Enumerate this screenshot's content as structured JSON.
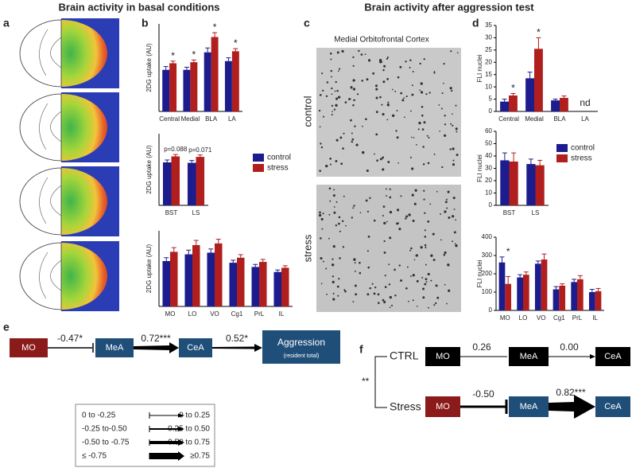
{
  "titles": [
    "Brain activity in basal conditions",
    "Brain activity after aggression test"
  ],
  "panel_labels": [
    "a",
    "b",
    "c",
    "d",
    "e",
    "f"
  ],
  "panel_c": {
    "title": "Medial Orbitofrontal Cortex",
    "rows": [
      "control",
      "stress"
    ]
  },
  "chart_data": [
    {
      "type": "bar",
      "y_label": "2DG uptake (AU)",
      "categories": [
        "Central",
        "Medial",
        "BLA",
        "LA"
      ],
      "ylim": [
        0,
        400
      ],
      "series": [
        {
          "name": "control",
          "color": "#1c1c8e",
          "values": [
            190,
            190,
            270,
            230
          ],
          "errors": [
            15,
            12,
            20,
            15
          ]
        },
        {
          "name": "stress",
          "color": "#b01e1e",
          "values": [
            220,
            225,
            340,
            275
          ],
          "errors": [
            10,
            10,
            20,
            12
          ]
        }
      ],
      "significance": [
        "*",
        "*",
        "*",
        "*"
      ]
    },
    {
      "type": "bar",
      "y_label": "2DG uptake (AU)",
      "categories": [
        "BST",
        "LS"
      ],
      "ylim": [
        0,
        300
      ],
      "legend": true,
      "series": [
        {
          "name": "control",
          "color": "#1c1c8e",
          "values": [
            180,
            178
          ],
          "errors": [
            10,
            10
          ]
        },
        {
          "name": "stress",
          "color": "#b01e1e",
          "values": [
            205,
            203
          ],
          "errors": [
            8,
            8
          ]
        }
      ],
      "significance": [
        "p=0.088",
        "p=0.071"
      ]
    },
    {
      "type": "bar",
      "y_label": "2DG uptake (AU)",
      "categories": [
        "MO",
        "LO",
        "VO",
        "Cg1",
        "PrL",
        "IL"
      ],
      "ylim": [
        0,
        450
      ],
      "series": [
        {
          "name": "control",
          "color": "#1c1c8e",
          "values": [
            270,
            310,
            320,
            260,
            235,
            205
          ],
          "errors": [
            20,
            25,
            22,
            15,
            15,
            12
          ]
        },
        {
          "name": "stress",
          "color": "#b01e1e",
          "values": [
            325,
            365,
            375,
            290,
            265,
            230
          ],
          "errors": [
            25,
            28,
            25,
            18,
            15,
            12
          ]
        }
      ]
    },
    {
      "type": "bar",
      "y_label": "FLI nuclei",
      "categories": [
        "Central",
        "Medial",
        "BLA",
        "LA"
      ],
      "ylim": [
        0,
        35
      ],
      "yticks": [
        0,
        5,
        10,
        15,
        20,
        25,
        30,
        35
      ],
      "series": [
        {
          "name": "control",
          "color": "#1c1c8e",
          "values": [
            4,
            13.5,
            4.5,
            null
          ],
          "errors": [
            1,
            2.5,
            0.5,
            null
          ]
        },
        {
          "name": "stress",
          "color": "#b01e1e",
          "values": [
            6.5,
            25.5,
            5.5,
            null
          ],
          "errors": [
            0.8,
            4.5,
            0.8,
            null
          ]
        }
      ],
      "significance": [
        "*",
        "*",
        null,
        "nd"
      ]
    },
    {
      "type": "bar",
      "y_label": "FLI nuclei",
      "categories": [
        "BST",
        "LS"
      ],
      "ylim": [
        0,
        60
      ],
      "yticks": [
        0,
        10,
        20,
        30,
        40,
        50,
        60
      ],
      "legend": true,
      "series": [
        {
          "name": "control",
          "color": "#1c1c8e",
          "values": [
            36.5,
            33.5
          ],
          "errors": [
            6,
            4
          ]
        },
        {
          "name": "stress",
          "color": "#b01e1e",
          "values": [
            35.5,
            32.5
          ],
          "errors": [
            7,
            4
          ]
        }
      ]
    },
    {
      "type": "bar",
      "y_label": "FLI nuclei",
      "categories": [
        "MO",
        "LO",
        "VO",
        "Cg1",
        "PrL",
        "IL"
      ],
      "ylim": [
        0,
        400
      ],
      "yticks": [
        0,
        100,
        200,
        300,
        400
      ],
      "series": [
        {
          "name": "control",
          "color": "#1c1c8e",
          "values": [
            262,
            180,
            255,
            115,
            155,
            100
          ],
          "errors": [
            30,
            15,
            15,
            15,
            15,
            15
          ]
        },
        {
          "name": "stress",
          "color": "#b01e1e",
          "values": [
            145,
            195,
            278,
            135,
            170,
            105
          ],
          "errors": [
            40,
            15,
            30,
            10,
            20,
            15
          ]
        }
      ],
      "significance": [
        "*",
        null,
        null,
        null,
        null,
        null
      ]
    }
  ],
  "panel_e": {
    "nodes": [
      "MO",
      "MeA",
      "CeA",
      "Aggression",
      "(resident total)"
    ],
    "edges": [
      "-0.47*",
      "0.72***",
      "0.52*"
    ],
    "scale_legend": [
      [
        "0 to -0.25",
        "0 to 0.25"
      ],
      [
        "-0.25 to-0.50",
        "0.25 to 0.50"
      ],
      [
        "-0.50 to -0.75",
        "0.50 to 0.75"
      ],
      [
        "≤ -0.75",
        "≥0.75"
      ]
    ]
  },
  "panel_f": {
    "groups": [
      "CTRL",
      "Stress"
    ],
    "significance": "**",
    "ctrl": {
      "nodes": [
        "MO",
        "MeA",
        "CeA"
      ],
      "edges": [
        "0.26",
        "0.00"
      ]
    },
    "stress": {
      "nodes": [
        "MO",
        "MeA",
        "CeA"
      ],
      "edges": [
        "-0.50",
        "0.82***"
      ]
    }
  }
}
